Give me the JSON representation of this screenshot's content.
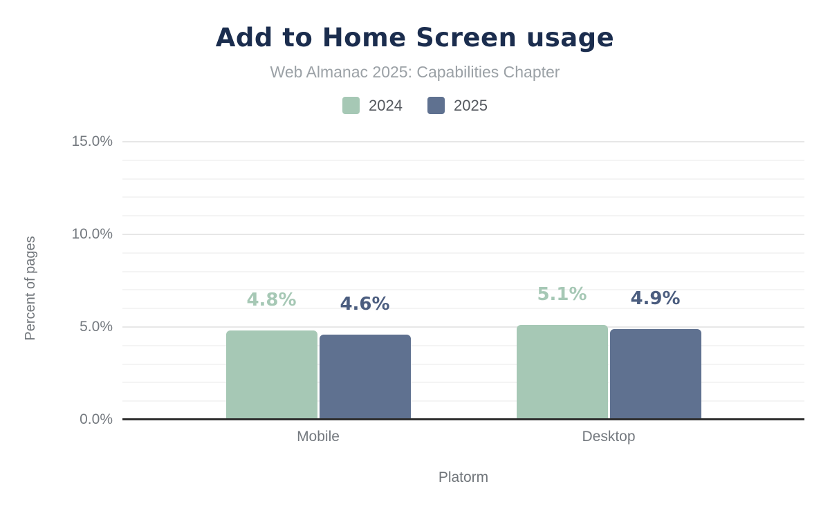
{
  "chart_data": {
    "type": "bar",
    "title": "Add to Home Screen usage",
    "subtitle": "Web Almanac 2025: Capabilities Chapter",
    "xlabel": "Platorm",
    "ylabel": "Percent of pages",
    "categories": [
      "Mobile",
      "Desktop"
    ],
    "series": [
      {
        "name": "2024",
        "color": "#a6c8b5",
        "label_color": "#a6c8b5",
        "values": [
          4.8,
          5.1
        ],
        "labels": [
          "4.8%",
          "5.1%"
        ]
      },
      {
        "name": "2025",
        "color": "#5f7190",
        "label_color": "#4b5d7f",
        "values": [
          4.6,
          4.9
        ],
        "labels": [
          "4.6%",
          "4.9%"
        ]
      }
    ],
    "ylim": [
      0,
      15
    ],
    "yticks": [
      {
        "value": 0,
        "label": "0.0%"
      },
      {
        "value": 5,
        "label": "5.0%"
      },
      {
        "value": 10,
        "label": "10.0%"
      },
      {
        "value": 15,
        "label": "15.0%"
      }
    ],
    "grid": {
      "minor_step": 1,
      "major_step": 5
    },
    "legend_position": "top"
  },
  "colors": {
    "title": "#1b2d4e",
    "subtitle": "#9ba1a6",
    "axis_text": "#74797f",
    "axis_line": "#2e2e2e"
  }
}
